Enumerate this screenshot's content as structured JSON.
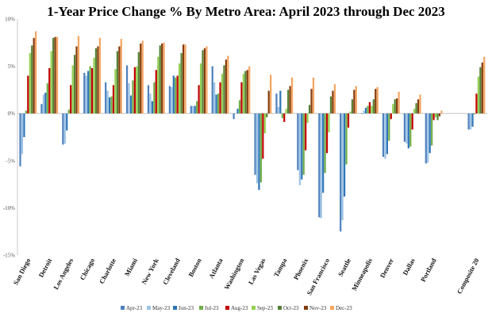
{
  "chart_data": {
    "type": "bar",
    "title": "1-Year Price Change % By Metro Area: April 2023 through Dec 2023",
    "xlabel": "",
    "ylabel": "",
    "ylim": [
      -15,
      10
    ],
    "yticks": [
      "-15%",
      "-10%",
      "-5%",
      "0%",
      "5%",
      "10%"
    ],
    "ytick_values": [
      -15,
      -10,
      -5,
      0,
      5,
      10
    ],
    "grid": false,
    "legend_position": "bottom",
    "categories": [
      "San Diego",
      "Detroit",
      "Los Angeles",
      "Chicago",
      "Charlotte",
      "Miami",
      "New York",
      "Cleveland",
      "Boston",
      "Atlanta",
      "Washington",
      "Las Vegas",
      "Tampa",
      "Phoenix",
      "San Francisco",
      "Seattle",
      "Minneapolis",
      "Denver",
      "Dallas",
      "Portland",
      "",
      "Composite 20"
    ],
    "series": [
      {
        "name": "Apr-23",
        "color": "#4f81bd",
        "values": [
          -5.6,
          1.0,
          -3.3,
          4.3,
          3.3,
          5.1,
          3.0,
          2.9,
          0.8,
          5.0,
          -0.6,
          -6.5,
          2.1,
          -6.0,
          -11.0,
          -12.5,
          0.0,
          -4.6,
          -3.0,
          -5.3,
          null,
          -1.7
        ]
      },
      {
        "name": "May-23",
        "color": "#9dc3e6",
        "values": [
          -4.3,
          2.0,
          -3.2,
          4.0,
          2.4,
          3.2,
          2.1,
          2.8,
          0.8,
          3.3,
          0.0,
          -7.4,
          0.7,
          -7.6,
          -11.1,
          -11.3,
          0.3,
          -4.8,
          -3.2,
          -5.2,
          null,
          -1.7
        ]
      },
      {
        "name": "Jun-23",
        "color": "#2e75b6",
        "values": [
          -2.5,
          2.2,
          -1.8,
          4.5,
          1.7,
          1.9,
          1.3,
          4.0,
          0.8,
          2.0,
          0.5,
          -8.1,
          2.4,
          -7.0,
          -8.4,
          -8.8,
          0.6,
          -4.3,
          -3.7,
          -4.2,
          null,
          -1.4
        ]
      },
      {
        "name": "Jul-23",
        "color": "#70ad47",
        "values": [
          0.3,
          3.2,
          0.4,
          5.0,
          1.8,
          3.5,
          3.3,
          3.8,
          1.3,
          2.1,
          1.4,
          -7.3,
          -0.5,
          -6.5,
          -6.3,
          -5.4,
          0.8,
          -2.9,
          -3.5,
          -3.4,
          null,
          -0.1
        ]
      },
      {
        "name": "Aug-23",
        "color": "#c00000",
        "values": [
          4.0,
          4.8,
          3.0,
          4.8,
          3.0,
          4.9,
          4.6,
          4.0,
          3.0,
          3.3,
          3.3,
          -4.8,
          -0.9,
          -3.9,
          -4.2,
          -1.5,
          1.2,
          -0.6,
          -1.7,
          -0.7,
          null,
          2.1
        ]
      },
      {
        "name": "Sep-23",
        "color": "#92d050",
        "values": [
          6.4,
          6.6,
          5.1,
          5.9,
          4.7,
          5.0,
          6.0,
          5.3,
          5.3,
          4.2,
          4.2,
          -2.1,
          0.5,
          -1.0,
          -2.0,
          0.2,
          0.8,
          1.0,
          0.5,
          -0.4,
          null,
          3.9
        ]
      },
      {
        "name": "Oct-23",
        "color": "#548235",
        "values": [
          7.2,
          8.0,
          6.2,
          6.9,
          6.6,
          6.5,
          7.2,
          6.4,
          6.7,
          5.1,
          4.5,
          -0.4,
          2.5,
          0.9,
          1.8,
          1.5,
          1.5,
          1.5,
          1.1,
          -0.7,
          null,
          4.9
        ]
      },
      {
        "name": "Nov-23",
        "color": "#843c0c",
        "values": [
          8.0,
          8.1,
          7.1,
          7.1,
          7.1,
          7.4,
          7.4,
          7.3,
          6.9,
          5.7,
          4.6,
          2.4,
          2.9,
          2.6,
          2.4,
          2.5,
          2.6,
          1.6,
          1.5,
          -0.3,
          null,
          5.4
        ]
      },
      {
        "name": "Dec-23",
        "color": "#f4a460",
        "values": [
          8.7,
          8.1,
          8.2,
          8.0,
          7.9,
          7.7,
          7.5,
          7.3,
          7.1,
          6.1,
          5.0,
          4.1,
          3.8,
          3.8,
          3.1,
          2.9,
          2.8,
          2.3,
          2.0,
          0.3,
          null,
          6.0
        ]
      }
    ]
  }
}
